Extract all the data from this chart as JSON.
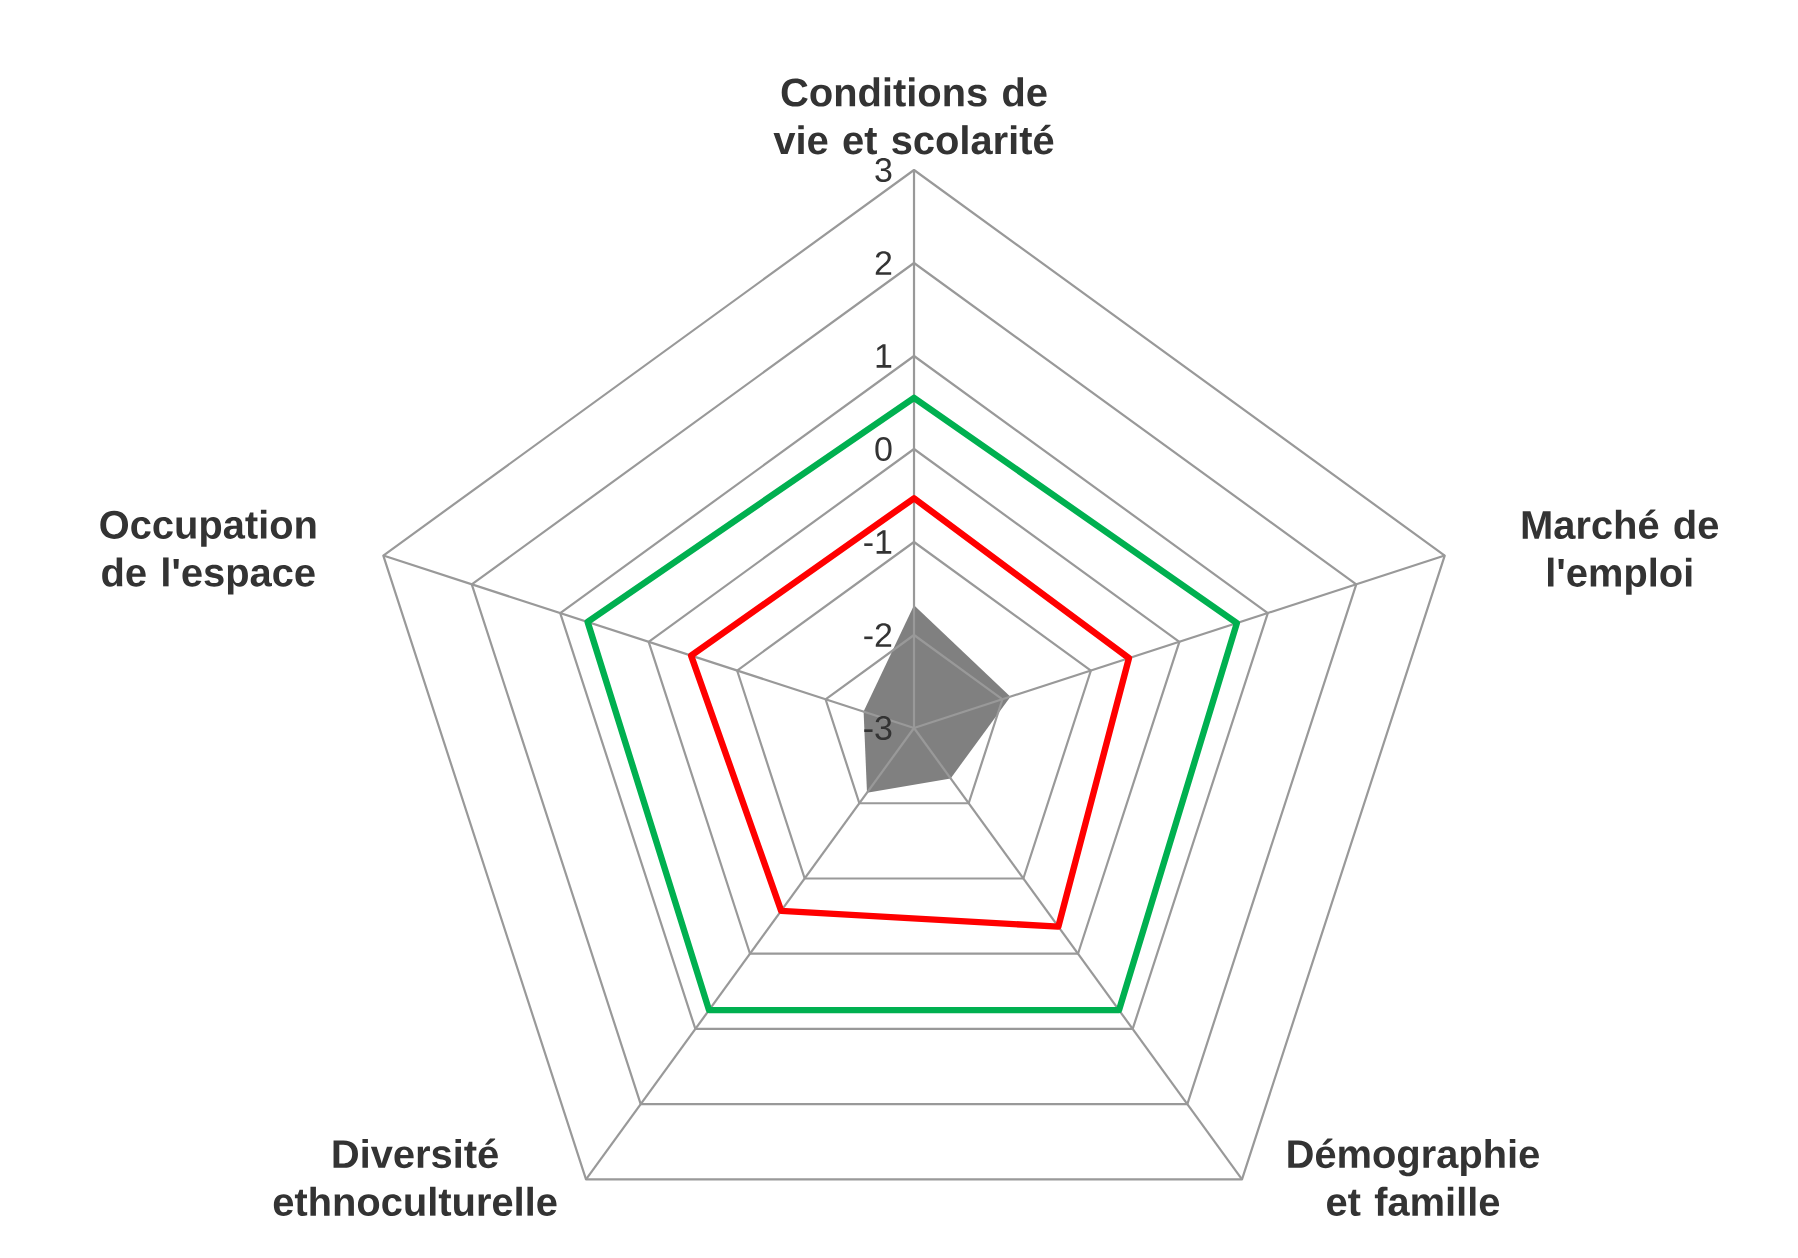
{
  "chart_data": {
    "type": "radar",
    "categories": [
      "Conditions de vie et scolarité",
      "Marché de l'emploi",
      "Démographie et famille",
      "Diversité ethnoculturelle",
      "Occupation de l'espace"
    ],
    "ylim": [
      -3,
      3
    ],
    "yticks": [
      -3,
      -2,
      -1,
      0,
      1,
      2,
      3
    ],
    "grid": true,
    "series": [
      {
        "type": "area",
        "color": "#808080",
        "values": [
          -1.68,
          -1.91,
          -2.33,
          -2.14,
          -2.43
        ]
      },
      {
        "color": "#ff0000",
        "values": [
          -0.53,
          -0.57,
          -0.36,
          -0.57,
          -0.48
        ]
      },
      {
        "color": "#00b050",
        "values": [
          0.55,
          0.65,
          0.75,
          0.75,
          0.69
        ]
      }
    ]
  }
}
